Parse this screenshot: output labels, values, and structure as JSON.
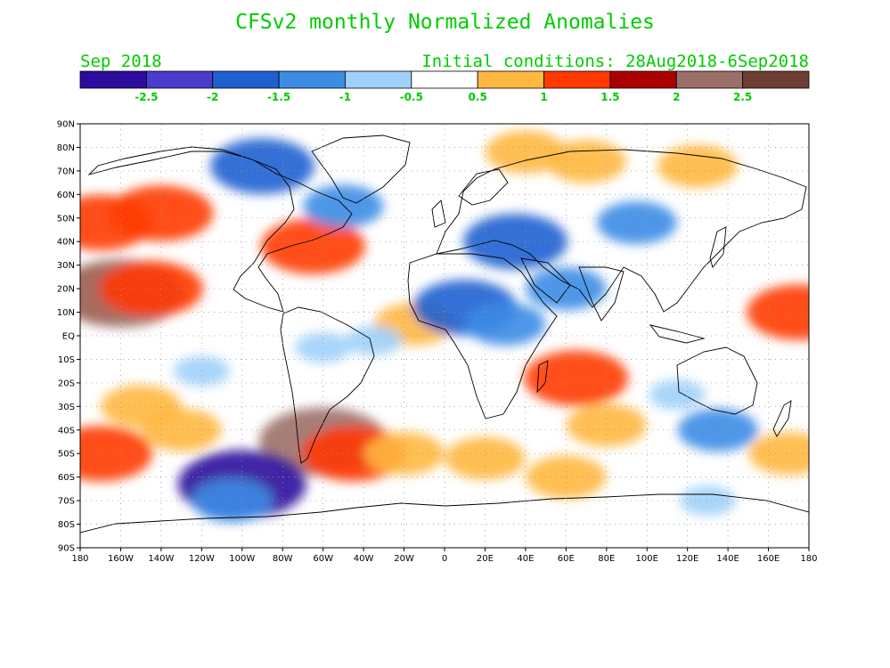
{
  "title": "CFSv2 monthly Normalized Anomalies",
  "month": "Sep 2018",
  "initial_conditions": "Initial conditions: 28Aug2018-6Sep2018",
  "colorbar": {
    "colors": [
      "#2c0c9c",
      "#4b3ccc",
      "#1e60d0",
      "#3c8ce6",
      "#a0d0fa",
      "#ffffff",
      "#ffb840",
      "#ff3a00",
      "#aa0000",
      "#9c7068",
      "#6e3e34"
    ],
    "labels": [
      "-2.5",
      "-2",
      "-1.5",
      "-1",
      "-0.5",
      "0.5",
      "1",
      "1.5",
      "2",
      "2.5"
    ]
  },
  "lat_labels": [
    "90N",
    "80N",
    "70N",
    "60N",
    "50N",
    "40N",
    "30N",
    "20N",
    "10N",
    "EQ",
    "10S",
    "20S",
    "30S",
    "40S",
    "50S",
    "60S",
    "70S",
    "80S",
    "90S"
  ],
  "lon_labels": [
    "180",
    "160W",
    "140W",
    "120W",
    "100W",
    "80W",
    "60W",
    "40W",
    "20W",
    "0",
    "20E",
    "40E",
    "60E",
    "80E",
    "100E",
    "120E",
    "140E",
    "160E",
    "180"
  ],
  "anomalies": [
    {
      "lon": -170,
      "lat": 18,
      "level": 3
    },
    {
      "lon": -160,
      "lat": 18,
      "level": 4
    },
    {
      "lon": -145,
      "lat": 20,
      "level": 3
    },
    {
      "lon": -170,
      "lat": 48,
      "level": 3
    },
    {
      "lon": -140,
      "lat": 52,
      "level": 3
    },
    {
      "lon": -170,
      "lat": -50,
      "level": 3
    },
    {
      "lon": -150,
      "lat": -30,
      "level": 2
    },
    {
      "lon": -130,
      "lat": -40,
      "level": 2
    },
    {
      "lon": -65,
      "lat": 38,
      "level": 3
    },
    {
      "lon": -60,
      "lat": -45,
      "level": 4
    },
    {
      "lon": -45,
      "lat": -50,
      "level": 3
    },
    {
      "lon": -15,
      "lat": 5,
      "level": 2
    },
    {
      "lon": -20,
      "lat": -50,
      "level": 2
    },
    {
      "lon": 20,
      "lat": -52,
      "level": 2
    },
    {
      "lon": 65,
      "lat": -18,
      "level": 3
    },
    {
      "lon": 80,
      "lat": -38,
      "level": 2
    },
    {
      "lon": 175,
      "lat": 10,
      "level": 3
    },
    {
      "lon": 40,
      "lat": 78,
      "level": 2
    },
    {
      "lon": 70,
      "lat": 74,
      "level": 2
    },
    {
      "lon": 125,
      "lat": 72,
      "level": 2
    },
    {
      "lon": 170,
      "lat": -50,
      "level": 2
    },
    {
      "lon": 60,
      "lat": -60,
      "level": 2
    },
    {
      "lon": -100,
      "lat": -63,
      "level": -4
    },
    {
      "lon": -105,
      "lat": -70,
      "level": -2
    },
    {
      "lon": -90,
      "lat": 72,
      "level": -3
    },
    {
      "lon": -50,
      "lat": 55,
      "level": -2
    },
    {
      "lon": 10,
      "lat": 12,
      "level": -3
    },
    {
      "lon": 30,
      "lat": 5,
      "level": -2
    },
    {
      "lon": -35,
      "lat": -2,
      "level": -1
    },
    {
      "lon": 95,
      "lat": 48,
      "level": -2
    },
    {
      "lon": 115,
      "lat": -25,
      "level": -1
    },
    {
      "lon": 135,
      "lat": -40,
      "level": -2
    },
    {
      "lon": 130,
      "lat": -70,
      "level": -1
    },
    {
      "lon": -120,
      "lat": -15,
      "level": -1
    },
    {
      "lon": 60,
      "lat": 20,
      "level": -2
    },
    {
      "lon": -60,
      "lat": -5,
      "level": -1
    },
    {
      "lon": 35,
      "lat": 40,
      "level": -3
    }
  ]
}
